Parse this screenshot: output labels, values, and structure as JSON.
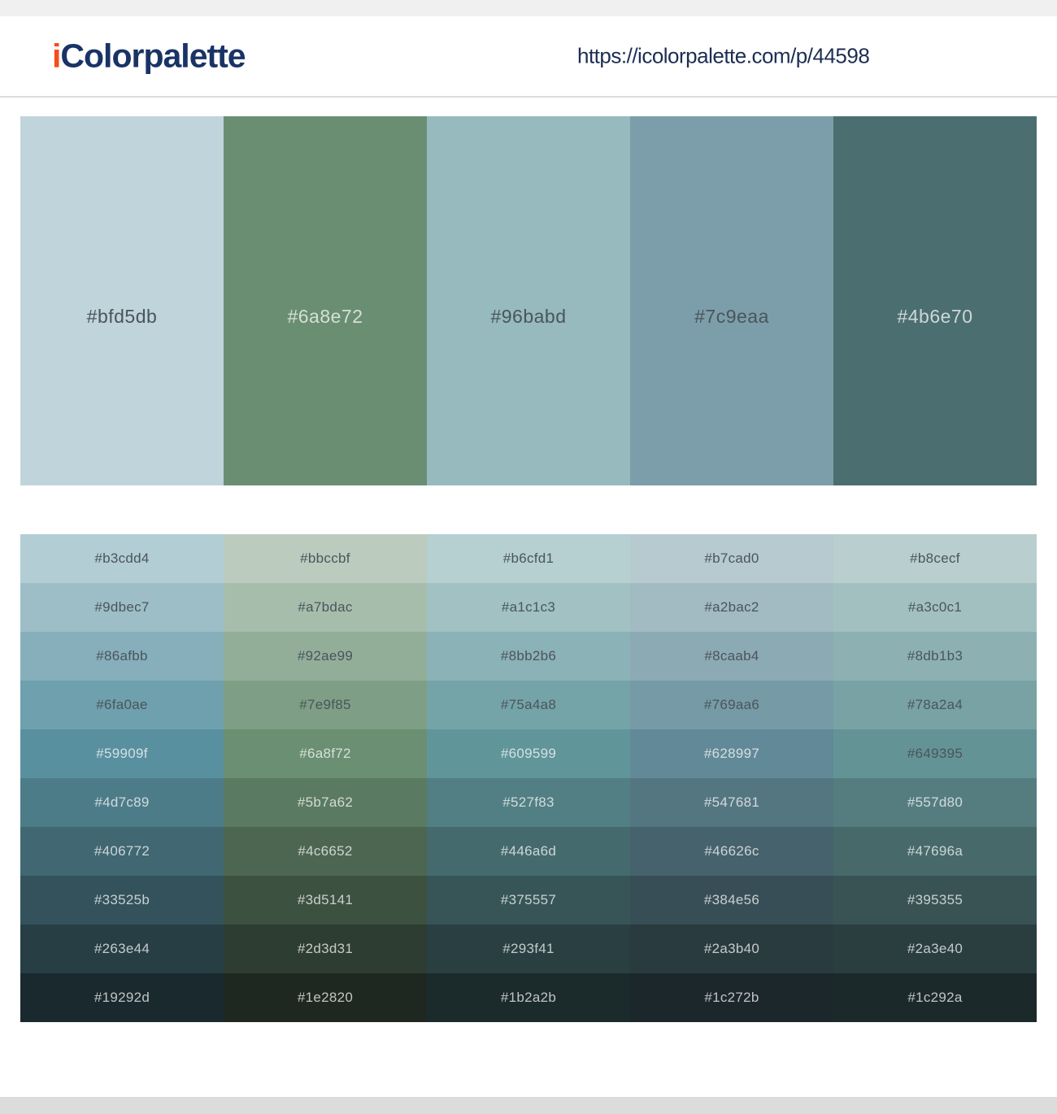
{
  "header": {
    "logo": {
      "prefix": "i",
      "rest": "Colorpalette"
    },
    "url": "https://icolorpalette.com/p/44598"
  },
  "palette": {
    "colors": [
      {
        "hex": "#bfd5db",
        "tone": "dark"
      },
      {
        "hex": "#6a8e72",
        "tone": "light"
      },
      {
        "hex": "#96babd",
        "tone": "dark"
      },
      {
        "hex": "#7c9eaa",
        "tone": "dark"
      },
      {
        "hex": "#4b6e70",
        "tone": "light"
      }
    ]
  },
  "shades": {
    "rows": [
      {
        "cells": [
          {
            "hex": "#b3cdd4",
            "tone": "dark"
          },
          {
            "hex": "#bbccbf",
            "tone": "dark"
          },
          {
            "hex": "#b6cfd1",
            "tone": "dark"
          },
          {
            "hex": "#b7cad0",
            "tone": "dark"
          },
          {
            "hex": "#b8cecf",
            "tone": "dark"
          }
        ]
      },
      {
        "cells": [
          {
            "hex": "#9dbec7",
            "tone": "dark"
          },
          {
            "hex": "#a7bdac",
            "tone": "dark"
          },
          {
            "hex": "#a1c1c3",
            "tone": "dark"
          },
          {
            "hex": "#a2bac2",
            "tone": "dark"
          },
          {
            "hex": "#a3c0c1",
            "tone": "dark"
          }
        ]
      },
      {
        "cells": [
          {
            "hex": "#86afbb",
            "tone": "dark"
          },
          {
            "hex": "#92ae99",
            "tone": "dark"
          },
          {
            "hex": "#8bb2b6",
            "tone": "dark"
          },
          {
            "hex": "#8caab4",
            "tone": "dark"
          },
          {
            "hex": "#8db1b3",
            "tone": "dark"
          }
        ]
      },
      {
        "cells": [
          {
            "hex": "#6fa0ae",
            "tone": "dark"
          },
          {
            "hex": "#7e9f85",
            "tone": "dark"
          },
          {
            "hex": "#75a4a8",
            "tone": "dark"
          },
          {
            "hex": "#769aa6",
            "tone": "dark"
          },
          {
            "hex": "#78a2a4",
            "tone": "dark"
          }
        ]
      },
      {
        "cells": [
          {
            "hex": "#59909f",
            "tone": "light"
          },
          {
            "hex": "#6a8f72",
            "tone": "light"
          },
          {
            "hex": "#609599",
            "tone": "light"
          },
          {
            "hex": "#628997",
            "tone": "light"
          },
          {
            "hex": "#649395",
            "tone": "dark"
          }
        ]
      },
      {
        "cells": [
          {
            "hex": "#4d7c89",
            "tone": "light"
          },
          {
            "hex": "#5b7a62",
            "tone": "light"
          },
          {
            "hex": "#527f83",
            "tone": "light"
          },
          {
            "hex": "#547681",
            "tone": "light"
          },
          {
            "hex": "#557d80",
            "tone": "light"
          }
        ]
      },
      {
        "cells": [
          {
            "hex": "#406772",
            "tone": "light"
          },
          {
            "hex": "#4c6652",
            "tone": "light"
          },
          {
            "hex": "#446a6d",
            "tone": "light"
          },
          {
            "hex": "#46626c",
            "tone": "light"
          },
          {
            "hex": "#47696a",
            "tone": "light"
          }
        ]
      },
      {
        "cells": [
          {
            "hex": "#33525b",
            "tone": "light"
          },
          {
            "hex": "#3d5141",
            "tone": "light"
          },
          {
            "hex": "#375557",
            "tone": "light"
          },
          {
            "hex": "#384e56",
            "tone": "light"
          },
          {
            "hex": "#395355",
            "tone": "light"
          }
        ]
      },
      {
        "cells": [
          {
            "hex": "#263e44",
            "tone": "light"
          },
          {
            "hex": "#2d3d31",
            "tone": "light"
          },
          {
            "hex": "#293f41",
            "tone": "light"
          },
          {
            "hex": "#2a3b40",
            "tone": "light"
          },
          {
            "hex": "#2a3e40",
            "tone": "light"
          }
        ]
      },
      {
        "cells": [
          {
            "hex": "#19292d",
            "tone": "light"
          },
          {
            "hex": "#1e2820",
            "tone": "light"
          },
          {
            "hex": "#1b2a2b",
            "tone": "light"
          },
          {
            "hex": "#1c272b",
            "tone": "light"
          },
          {
            "hex": "#1c292a",
            "tone": "light"
          }
        ]
      }
    ]
  },
  "colors": {
    "accent_orange": "#f74c1b",
    "brand_navy": "#1a3366",
    "url_navy": "#1c2e52",
    "top_bar_gray": "#f0f0f0",
    "footer_gray": "#dcdcdc",
    "text_dark": "#4a555b",
    "text_light": "rgba(255,255,255,0.72)"
  }
}
